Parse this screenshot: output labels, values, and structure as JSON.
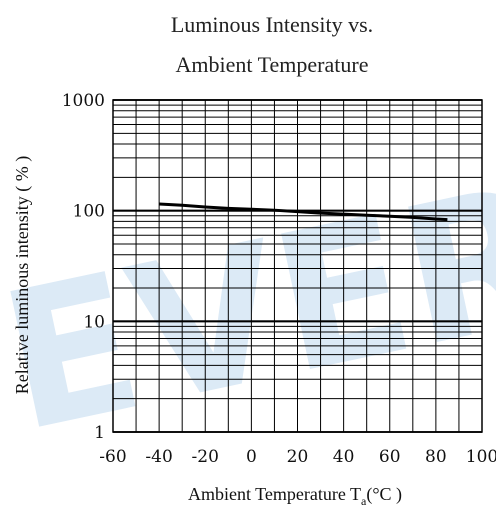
{
  "chart_data": {
    "type": "line",
    "title_lines": [
      "Luminous Intensity vs.",
      "Ambient Temperature"
    ],
    "xlabel_main": "Ambient Temperature T",
    "xlabel_sub": "a",
    "xlabel_unit": "(°C )",
    "ylabel": "Relative luminous intensity ( % )",
    "xlim": [
      -60,
      100
    ],
    "ylim": [
      1,
      1000
    ],
    "y_scale": "log",
    "grid": true,
    "x_ticks": [
      -60,
      -40,
      -20,
      0,
      20,
      40,
      60,
      80,
      100
    ],
    "x_tick_labels": [
      "-60",
      "-40",
      "-20",
      "0",
      "20",
      "40",
      "60",
      "80",
      "100"
    ],
    "y_ticks": [
      1,
      10,
      100,
      1000
    ],
    "y_tick_labels": [
      "1",
      "10",
      "100",
      "1000"
    ],
    "series": [
      {
        "x": [
          -40,
          -30,
          -20,
          -10,
          0,
          10,
          20,
          30,
          40,
          50,
          60,
          70,
          80,
          85
        ],
        "y": [
          115,
          112,
          108,
          105,
          103,
          101,
          98,
          95,
          93,
          91,
          89,
          87,
          84,
          83
        ]
      }
    ]
  },
  "watermark": "EVER",
  "colors": {
    "grid": "#000000",
    "line": "#000000",
    "watermark": "#dceaf6"
  }
}
